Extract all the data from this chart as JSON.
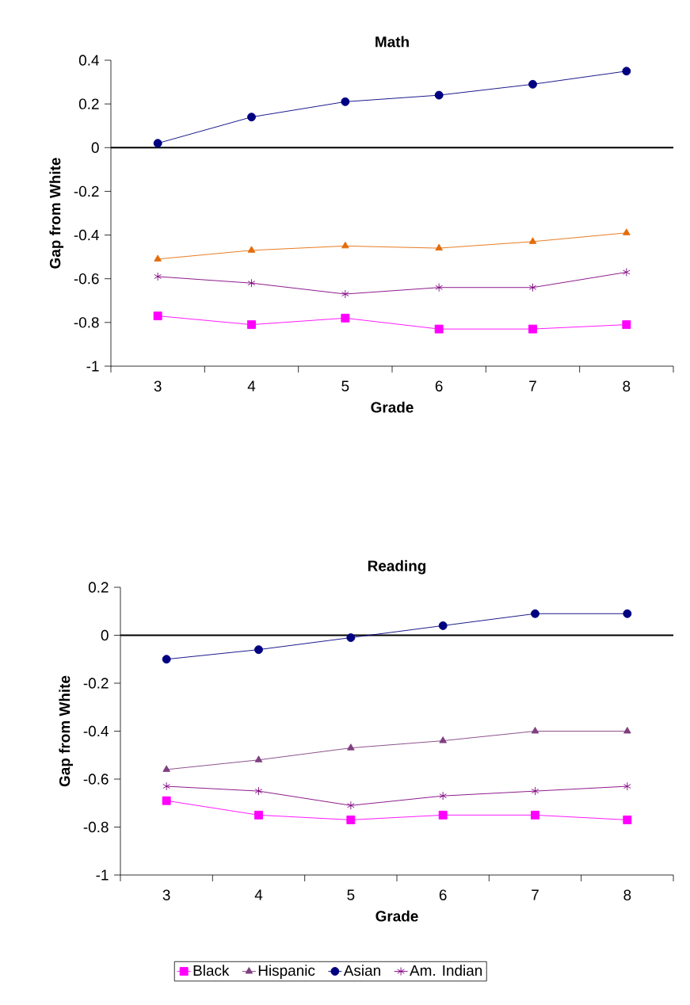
{
  "chart_data": [
    {
      "type": "line",
      "title": "Math",
      "xlabel": "Grade",
      "ylabel": "Gap from White",
      "categories": [
        "3",
        "4",
        "5",
        "6",
        "7",
        "8"
      ],
      "ylim": [
        -1,
        0.4
      ],
      "yticks": [
        -1,
        -0.8,
        -0.6,
        -0.4,
        -0.2,
        0,
        0.2,
        0.4
      ],
      "grid": false,
      "legend": false,
      "ref_lines": [
        {
          "axis": "y",
          "value": 0,
          "color": "#000000"
        }
      ],
      "series": [
        {
          "color": "#ff00ff",
          "marker": "square",
          "values": [
            -0.77,
            -0.81,
            -0.78,
            -0.83,
            -0.83,
            -0.81
          ]
        },
        {
          "color": "#e46c0a",
          "marker": "triangle",
          "values": [
            -0.51,
            -0.47,
            -0.45,
            -0.46,
            -0.43,
            -0.39
          ]
        },
        {
          "color": "#000080",
          "marker": "circle",
          "values": [
            0.02,
            0.14,
            0.21,
            0.24,
            0.29,
            0.35
          ]
        },
        {
          "color": "#800080",
          "marker": "cross",
          "values": [
            -0.59,
            -0.62,
            -0.67,
            -0.64,
            -0.64,
            -0.57
          ]
        }
      ]
    },
    {
      "type": "line",
      "title": "Reading",
      "xlabel": "Grade",
      "ylabel": "Gap from White",
      "categories": [
        "3",
        "4",
        "5",
        "6",
        "7",
        "8"
      ],
      "ylim": [
        -1,
        0.2
      ],
      "yticks": [
        -1,
        -0.8,
        -0.6,
        -0.4,
        -0.2,
        0,
        0.2
      ],
      "grid": false,
      "legend": "bottom",
      "ref_lines": [
        {
          "axis": "y",
          "value": 0,
          "color": "#000000"
        }
      ],
      "series": [
        {
          "name": "Black",
          "color": "#ff00ff",
          "marker": "square",
          "values": [
            -0.69,
            -0.75,
            -0.77,
            -0.75,
            -0.75,
            -0.77
          ]
        },
        {
          "name": "Hispanic",
          "color": "#7f3f7f",
          "marker": "triangle",
          "values": [
            -0.56,
            -0.52,
            -0.47,
            -0.44,
            -0.4,
            -0.4
          ]
        },
        {
          "name": "Asian",
          "color": "#000080",
          "marker": "circle",
          "values": [
            -0.1,
            -0.06,
            -0.01,
            0.04,
            0.09,
            0.09
          ]
        },
        {
          "name": "Am. Indian",
          "color": "#800080",
          "marker": "cross",
          "values": [
            -0.63,
            -0.65,
            -0.71,
            -0.67,
            -0.65,
            -0.63
          ]
        }
      ]
    }
  ]
}
